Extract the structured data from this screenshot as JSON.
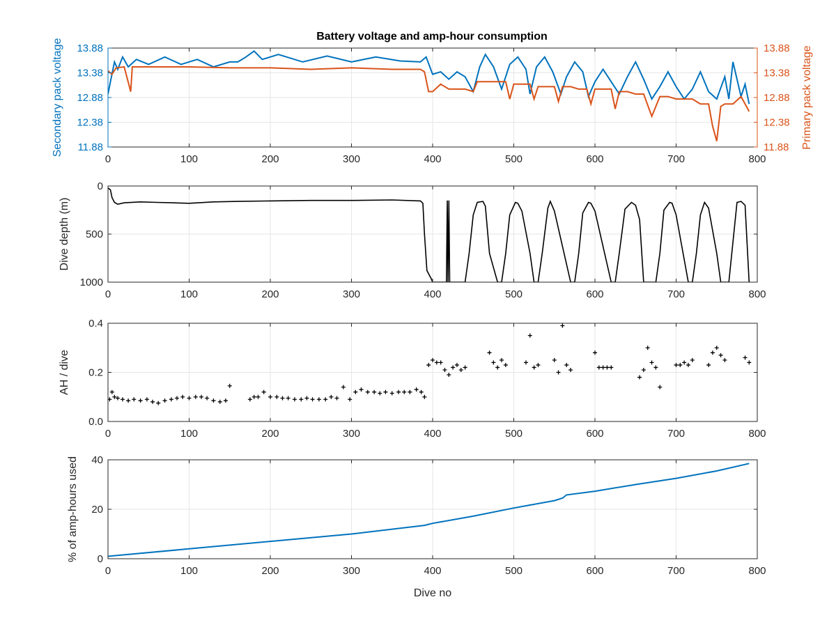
{
  "figure": {
    "title": "Battery voltage and amp-hour consumption"
  },
  "colors": {
    "blue": "#0072BD",
    "orange": "#D95319",
    "black": "#000000",
    "grid": "#e6e6e6",
    "axis": "#262626"
  },
  "chart_data": [
    {
      "type": "line",
      "title": "Battery voltage and amp-hour consumption",
      "xlabel": "",
      "ylabel": "Secondary pack voltage",
      "ylabel_right": "Primary pack voltage",
      "xlim": [
        0,
        800
      ],
      "ylim": [
        11.88,
        13.88
      ],
      "xticks": [
        0,
        100,
        200,
        300,
        400,
        500,
        600,
        700,
        800
      ],
      "yticks": [
        11.88,
        12.38,
        12.88,
        13.38,
        13.88
      ],
      "yticks_right": [
        11.88,
        12.38,
        12.88,
        13.38,
        13.88
      ],
      "grid": true,
      "series": [
        {
          "name": "",
          "axis": "left",
          "color": "#0072BD",
          "x": [
            0,
            3,
            8,
            12,
            18,
            25,
            35,
            50,
            70,
            90,
            110,
            130,
            150,
            160,
            170,
            180,
            190,
            210,
            240,
            270,
            300,
            330,
            360,
            385,
            392,
            400,
            410,
            420,
            430,
            440,
            450,
            458,
            465,
            475,
            485,
            495,
            505,
            515,
            520,
            528,
            538,
            548,
            558,
            565,
            575,
            585,
            592,
            600,
            610,
            620,
            630,
            640,
            650,
            660,
            670,
            680,
            690,
            700,
            710,
            720,
            730,
            740,
            750,
            760,
            765,
            770,
            780,
            785,
            790
          ],
          "y": [
            12.95,
            13.2,
            13.6,
            13.45,
            13.7,
            13.5,
            13.65,
            13.55,
            13.7,
            13.55,
            13.65,
            13.5,
            13.6,
            13.6,
            13.7,
            13.82,
            13.65,
            13.75,
            13.6,
            13.72,
            13.6,
            13.7,
            13.62,
            13.6,
            13.7,
            13.35,
            13.4,
            13.25,
            13.4,
            13.3,
            13.0,
            13.5,
            13.75,
            13.5,
            13.05,
            13.55,
            13.7,
            13.45,
            12.95,
            13.5,
            13.7,
            13.4,
            12.95,
            13.3,
            13.6,
            13.4,
            12.9,
            13.2,
            13.45,
            13.2,
            12.95,
            13.3,
            13.6,
            13.25,
            12.85,
            13.1,
            13.4,
            13.1,
            12.85,
            13.05,
            13.4,
            13.0,
            12.85,
            13.3,
            12.85,
            13.6,
            12.9,
            13.15,
            12.75
          ]
        },
        {
          "name": "",
          "axis": "right",
          "color": "#D95319",
          "x": [
            0,
            5,
            10,
            20,
            28,
            30,
            50,
            100,
            150,
            200,
            250,
            300,
            350,
            385,
            390,
            395,
            400,
            410,
            420,
            430,
            440,
            450,
            455,
            460,
            470,
            480,
            490,
            495,
            500,
            510,
            520,
            525,
            530,
            540,
            550,
            555,
            560,
            570,
            580,
            590,
            595,
            600,
            610,
            620,
            625,
            630,
            640,
            650,
            660,
            670,
            680,
            690,
            700,
            710,
            720,
            730,
            740,
            745,
            750,
            755,
            760,
            770,
            780,
            790
          ],
          "y": [
            13.42,
            13.35,
            13.48,
            13.5,
            13.0,
            13.5,
            13.5,
            13.5,
            13.48,
            13.48,
            13.45,
            13.48,
            13.45,
            13.45,
            13.4,
            13.0,
            13.0,
            13.15,
            13.05,
            13.05,
            13.05,
            13.0,
            13.2,
            13.2,
            13.2,
            13.2,
            13.2,
            12.85,
            13.15,
            13.15,
            13.15,
            12.85,
            13.1,
            13.1,
            13.1,
            12.8,
            13.1,
            13.1,
            13.05,
            13.05,
            12.75,
            13.05,
            13.05,
            13.05,
            12.65,
            13.0,
            13.0,
            12.95,
            12.95,
            12.5,
            12.9,
            12.9,
            12.85,
            12.85,
            12.85,
            12.75,
            12.75,
            12.3,
            12.0,
            12.7,
            12.75,
            12.75,
            12.9,
            12.6
          ]
        }
      ]
    },
    {
      "type": "line",
      "title": "",
      "xlabel": "",
      "ylabel": "Dive depth (m)",
      "xlim": [
        0,
        800
      ],
      "ylim": [
        0,
        1000
      ],
      "y_reversed": true,
      "xticks": [
        0,
        100,
        200,
        300,
        400,
        500,
        600,
        700,
        800
      ],
      "yticks": [
        0,
        500,
        1000
      ],
      "grid": true,
      "series": [
        {
          "name": "",
          "color": "#000000",
          "x": [
            0,
            3,
            5,
            8,
            12,
            20,
            40,
            60,
            80,
            100,
            130,
            160,
            200,
            250,
            300,
            350,
            385,
            388,
            390,
            393,
            398,
            400,
            417,
            418,
            419,
            420,
            421,
            440,
            445,
            450,
            455,
            462,
            465,
            470,
            480,
            485,
            490,
            495,
            502,
            505,
            510,
            520,
            525,
            530,
            535,
            542,
            545,
            550,
            570,
            575,
            580,
            585,
            592,
            595,
            600,
            620,
            625,
            630,
            637,
            645,
            650,
            655,
            660,
            670,
            675,
            680,
            685,
            692,
            695,
            700,
            715,
            720,
            725,
            730,
            735,
            740,
            750,
            755,
            765,
            775,
            780,
            785,
            790
          ],
          "y": [
            20,
            40,
            120,
            170,
            190,
            175,
            165,
            170,
            175,
            180,
            165,
            160,
            155,
            150,
            150,
            145,
            155,
            180,
            500,
            880,
            960,
            1000,
            1000,
            150,
            1000,
            150,
            1000,
            1000,
            700,
            300,
            170,
            160,
            210,
            700,
            1000,
            1000,
            700,
            300,
            170,
            180,
            260,
            700,
            1000,
            1000,
            700,
            230,
            160,
            260,
            1000,
            1000,
            700,
            280,
            170,
            180,
            260,
            1000,
            1000,
            700,
            240,
            170,
            200,
            350,
            1000,
            1000,
            1000,
            700,
            250,
            170,
            180,
            300,
            1000,
            1000,
            700,
            300,
            170,
            230,
            700,
            1000,
            1000,
            170,
            160,
            200,
            1000
          ]
        }
      ]
    },
    {
      "type": "scatter",
      "title": "",
      "xlabel": "",
      "ylabel": "AH / dive",
      "xlim": [
        0,
        800
      ],
      "ylim": [
        0,
        0.4
      ],
      "xticks": [
        0,
        100,
        200,
        300,
        400,
        500,
        600,
        700,
        800
      ],
      "yticks": [
        0,
        0.2,
        0.4
      ],
      "grid": true,
      "series": [
        {
          "name": "",
          "color": "#000000",
          "x": [
            2,
            5,
            8,
            12,
            18,
            25,
            32,
            40,
            48,
            55,
            62,
            70,
            78,
            85,
            92,
            100,
            108,
            115,
            122,
            130,
            138,
            145,
            150,
            175,
            180,
            185,
            192,
            200,
            208,
            215,
            222,
            230,
            238,
            245,
            252,
            260,
            268,
            275,
            282,
            290,
            298,
            305,
            312,
            320,
            328,
            335,
            342,
            350,
            358,
            365,
            372,
            380,
            386,
            390,
            395,
            400,
            405,
            410,
            415,
            420,
            425,
            430,
            435,
            440,
            470,
            475,
            480,
            485,
            490,
            515,
            520,
            525,
            530,
            550,
            555,
            560,
            565,
            570,
            600,
            605,
            610,
            615,
            620,
            655,
            660,
            665,
            670,
            675,
            680,
            700,
            705,
            710,
            715,
            720,
            740,
            745,
            750,
            755,
            760,
            785,
            790
          ],
          "y": [
            0.09,
            0.12,
            0.1,
            0.095,
            0.09,
            0.085,
            0.09,
            0.085,
            0.09,
            0.08,
            0.075,
            0.085,
            0.09,
            0.095,
            0.1,
            0.095,
            0.1,
            0.1,
            0.095,
            0.085,
            0.08,
            0.085,
            0.145,
            0.09,
            0.1,
            0.1,
            0.12,
            0.1,
            0.1,
            0.095,
            0.095,
            0.09,
            0.09,
            0.095,
            0.09,
            0.09,
            0.09,
            0.1,
            0.095,
            0.14,
            0.09,
            0.12,
            0.13,
            0.12,
            0.12,
            0.115,
            0.12,
            0.115,
            0.12,
            0.12,
            0.12,
            0.13,
            0.12,
            0.1,
            0.23,
            0.25,
            0.24,
            0.24,
            0.21,
            0.19,
            0.22,
            0.23,
            0.21,
            0.22,
            0.28,
            0.24,
            0.22,
            0.25,
            0.23,
            0.24,
            0.35,
            0.22,
            0.23,
            0.25,
            0.2,
            0.39,
            0.23,
            0.21,
            0.28,
            0.22,
            0.22,
            0.22,
            0.22,
            0.18,
            0.21,
            0.3,
            0.24,
            0.22,
            0.14,
            0.23,
            0.23,
            0.24,
            0.23,
            0.25,
            0.23,
            0.28,
            0.3,
            0.27,
            0.25,
            0.26,
            0.24
          ]
        }
      ]
    },
    {
      "type": "line",
      "title": "",
      "xlabel": "Dive no",
      "ylabel": "% of amp-hours used",
      "xlim": [
        0,
        800
      ],
      "ylim": [
        0,
        40
      ],
      "xticks": [
        0,
        100,
        200,
        300,
        400,
        500,
        600,
        700,
        800
      ],
      "yticks": [
        0,
        20,
        40
      ],
      "grid": true,
      "series": [
        {
          "name": "",
          "color": "#0072BD",
          "x": [
            0,
            100,
            200,
            300,
            390,
            400,
            450,
            500,
            550,
            560,
            565,
            600,
            650,
            700,
            750,
            790
          ],
          "y": [
            1,
            4,
            7,
            10,
            13.5,
            14.3,
            17.2,
            20.5,
            23.5,
            24.5,
            25.8,
            27.3,
            30,
            32.5,
            35.5,
            38.5
          ]
        }
      ]
    }
  ]
}
